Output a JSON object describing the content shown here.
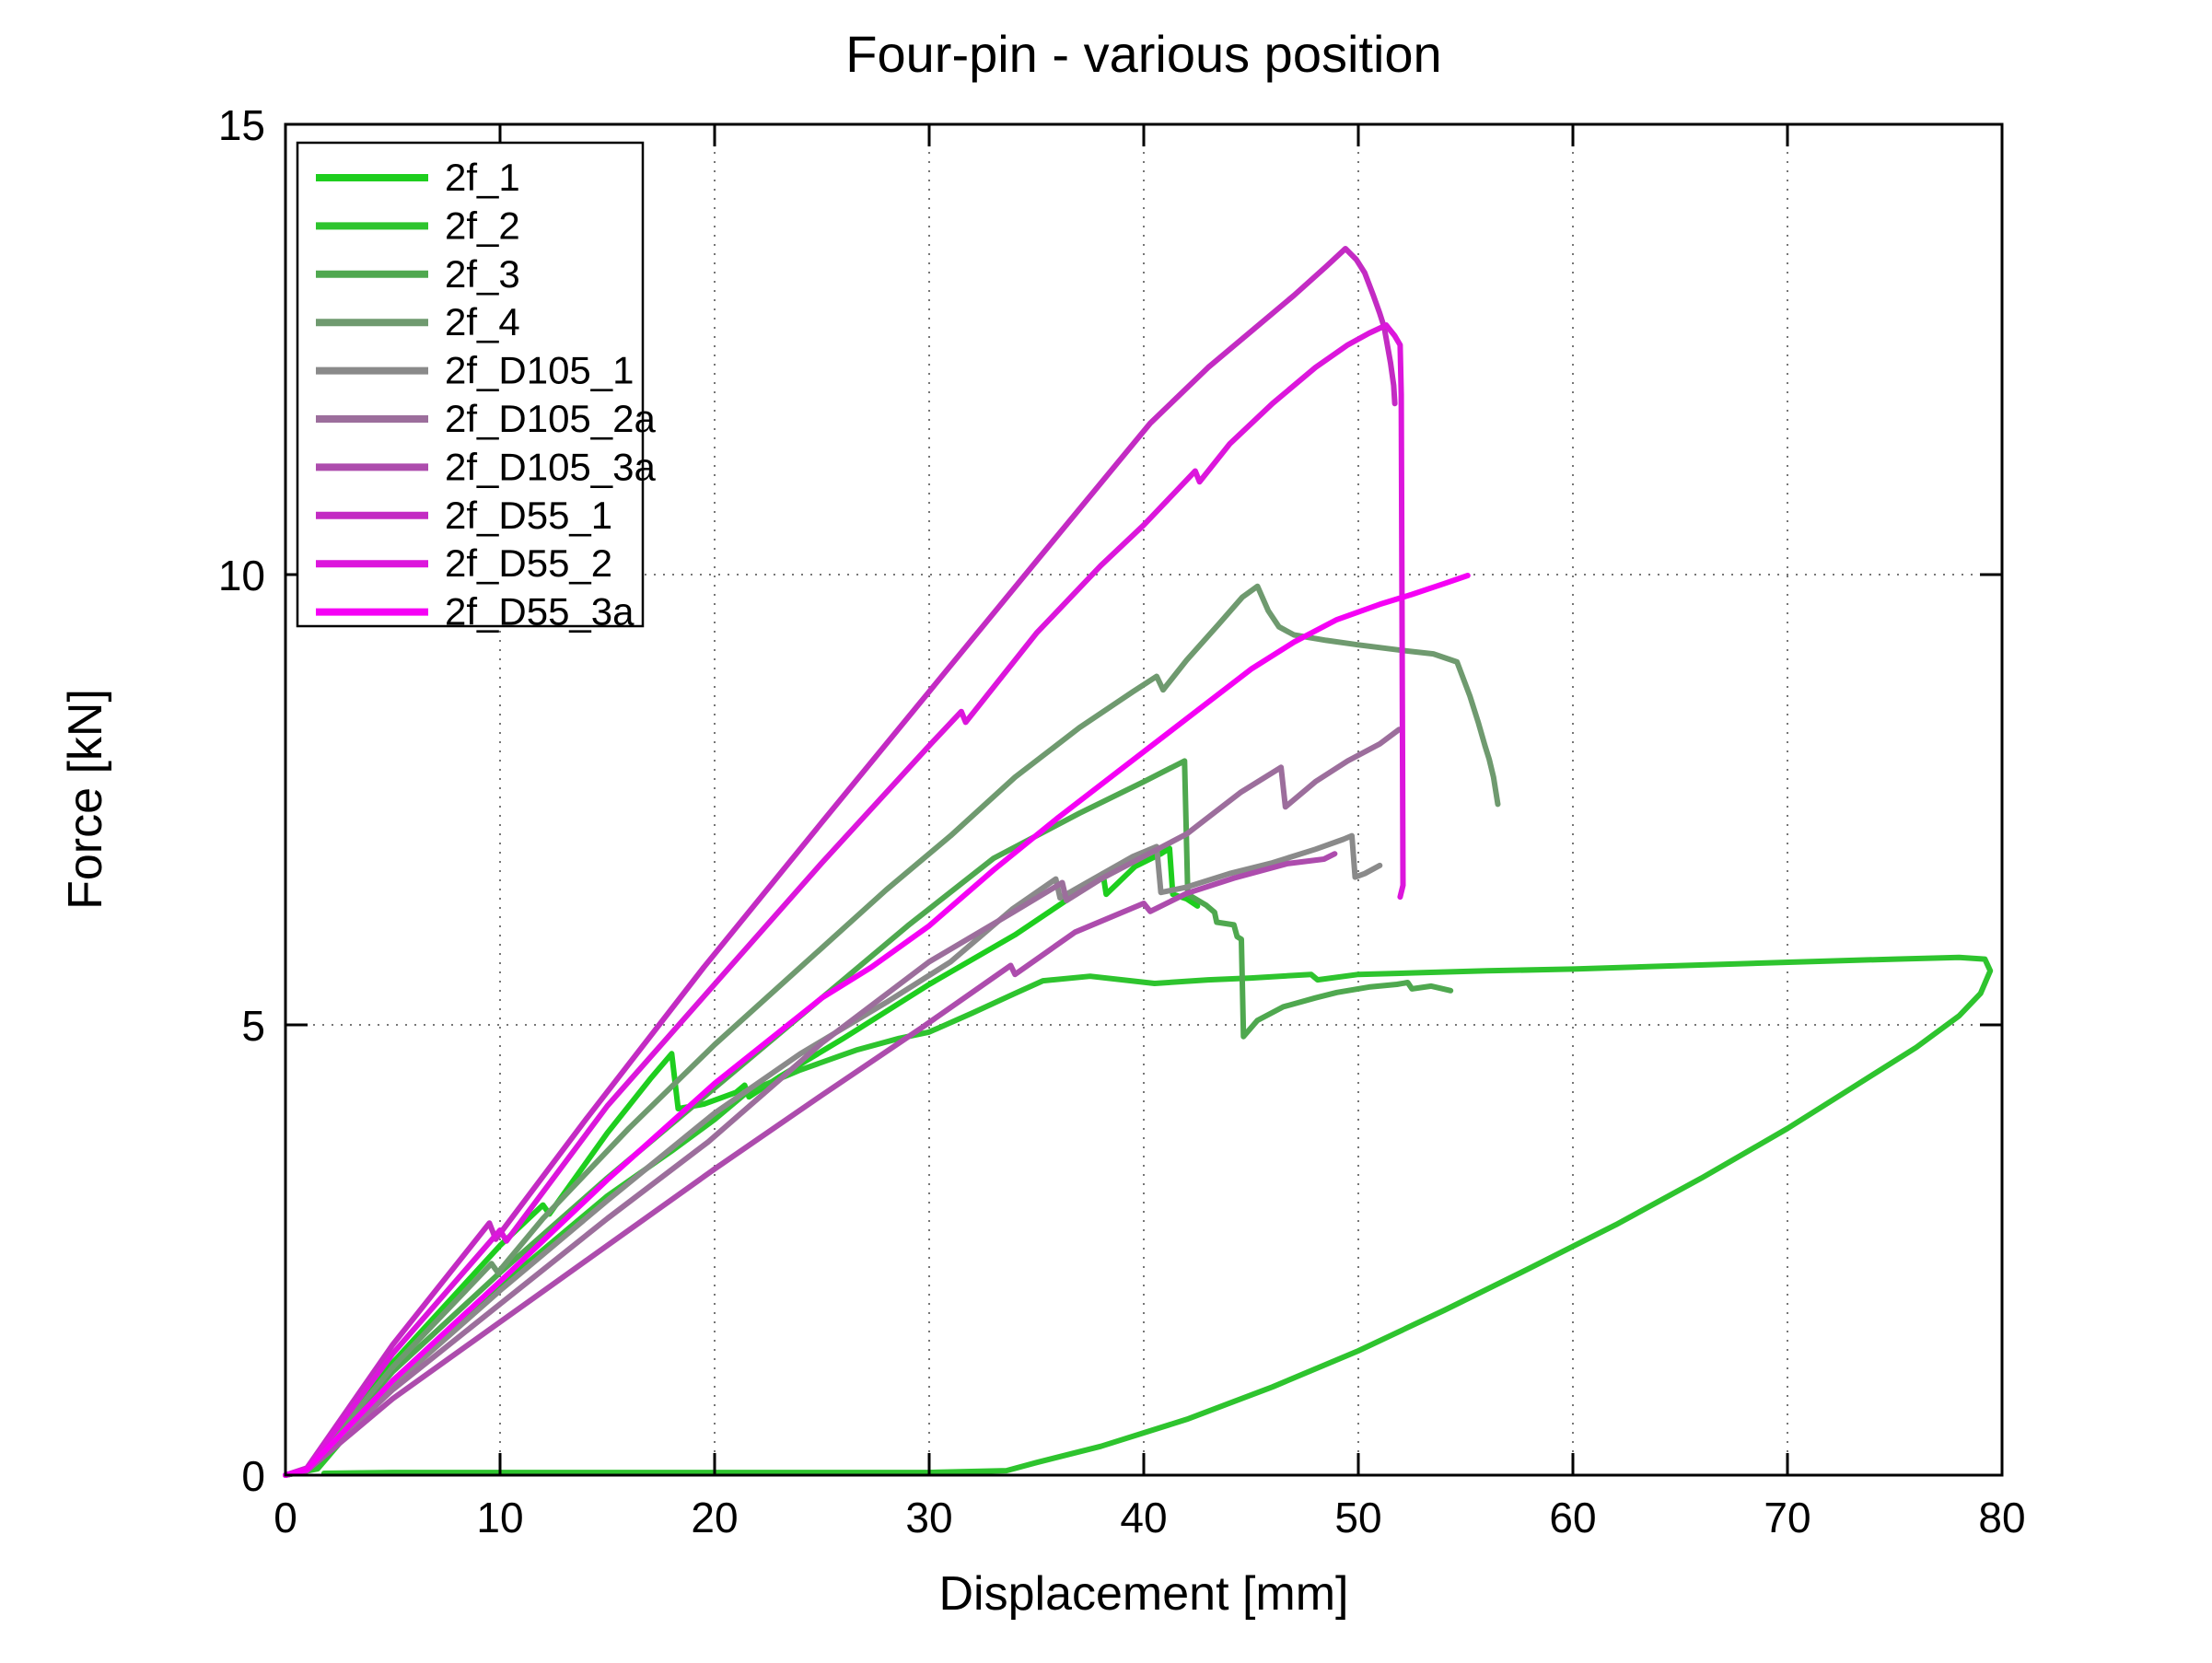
{
  "chart_data": {
    "type": "line",
    "title": "Four-pin - various position",
    "xlabel": "Displacement [mm]",
    "ylabel": "Force [kN]",
    "xlim": [
      0,
      80
    ],
    "ylim": [
      0,
      15
    ],
    "xticks": [
      0,
      10,
      20,
      30,
      40,
      50,
      60,
      70,
      80
    ],
    "yticks": [
      0,
      5,
      10,
      15
    ],
    "grid": "dotted",
    "legend_position": "upper-left",
    "series": [
      {
        "name": "2f_1",
        "color": "#1ECE1E",
        "points": [
          [
            0,
            0
          ],
          [
            1,
            0.05
          ],
          [
            5,
            1.25
          ],
          [
            10,
            2.55
          ],
          [
            12,
            3.0
          ],
          [
            12.3,
            2.9
          ],
          [
            15,
            3.8
          ],
          [
            17,
            4.4
          ],
          [
            18.0,
            4.68
          ],
          [
            18.3,
            4.07
          ],
          [
            19.5,
            4.12
          ],
          [
            21.0,
            4.25
          ],
          [
            21.4,
            4.33
          ],
          [
            21.6,
            4.2
          ],
          [
            23,
            4.42
          ],
          [
            26,
            4.85
          ],
          [
            30,
            5.45
          ],
          [
            34,
            6.0
          ],
          [
            36.5,
            6.4
          ],
          [
            38.1,
            6.68
          ],
          [
            38.25,
            6.45
          ],
          [
            39.6,
            6.76
          ],
          [
            40.8,
            6.9
          ],
          [
            41.2,
            6.96
          ],
          [
            41.35,
            6.45
          ],
          [
            42.0,
            6.4
          ],
          [
            42.5,
            6.32
          ]
        ]
      },
      {
        "name": "2f_2",
        "color": "#2EC42E",
        "points": [
          [
            0,
            0
          ],
          [
            1.5,
            0.07
          ],
          [
            5,
            1.05
          ],
          [
            10,
            2.1
          ],
          [
            15,
            3.1
          ],
          [
            18,
            3.6
          ],
          [
            20,
            3.95
          ],
          [
            21.5,
            4.25
          ],
          [
            24,
            4.5
          ],
          [
            26.6,
            4.72
          ],
          [
            28.6,
            4.85
          ],
          [
            30,
            4.92
          ],
          [
            32,
            5.13
          ],
          [
            34,
            5.35
          ],
          [
            35.3,
            5.49
          ],
          [
            37.5,
            5.54
          ],
          [
            40.5,
            5.46
          ],
          [
            43,
            5.5
          ],
          [
            45,
            5.52
          ],
          [
            47.8,
            5.56
          ],
          [
            48.1,
            5.5
          ],
          [
            50,
            5.56
          ],
          [
            53,
            5.58
          ],
          [
            56,
            5.6
          ],
          [
            60,
            5.62
          ],
          [
            64,
            5.65
          ],
          [
            68,
            5.68
          ],
          [
            72,
            5.71
          ],
          [
            75,
            5.73
          ],
          [
            78,
            5.75
          ],
          [
            79.2,
            5.73
          ],
          [
            79.45,
            5.6
          ],
          [
            79,
            5.35
          ],
          [
            78,
            5.1
          ],
          [
            76,
            4.75
          ],
          [
            73,
            4.3
          ],
          [
            70,
            3.85
          ],
          [
            66,
            3.3
          ],
          [
            62,
            2.78
          ],
          [
            58,
            2.3
          ],
          [
            54,
            1.83
          ],
          [
            50,
            1.38
          ],
          [
            46,
            0.98
          ],
          [
            42,
            0.62
          ],
          [
            38,
            0.32
          ],
          [
            35,
            0.14
          ],
          [
            33.6,
            0.05
          ],
          [
            30,
            0.03
          ],
          [
            25,
            0.03
          ],
          [
            20,
            0.03
          ],
          [
            15,
            0.03
          ],
          [
            10,
            0.03
          ],
          [
            5,
            0.03
          ],
          [
            1.8,
            0.02
          ]
        ]
      },
      {
        "name": "2f_3",
        "color": "#4FA84F",
        "points": [
          [
            0,
            0
          ],
          [
            1,
            0.05
          ],
          [
            5,
            1.15
          ],
          [
            10,
            2.25
          ],
          [
            15,
            3.3
          ],
          [
            20,
            4.3
          ],
          [
            25,
            5.3
          ],
          [
            29,
            6.1
          ],
          [
            33,
            6.85
          ],
          [
            37,
            7.35
          ],
          [
            40,
            7.7
          ],
          [
            41.9,
            7.93
          ],
          [
            42.05,
            6.45
          ],
          [
            42.9,
            6.33
          ],
          [
            43.3,
            6.25
          ],
          [
            43.4,
            6.14
          ],
          [
            44.2,
            6.11
          ],
          [
            44.35,
            5.98
          ],
          [
            44.55,
            5.95
          ],
          [
            44.65,
            4.87
          ],
          [
            45.3,
            5.05
          ],
          [
            46.5,
            5.2
          ],
          [
            48,
            5.3
          ],
          [
            49,
            5.36
          ],
          [
            50.5,
            5.42
          ],
          [
            51.8,
            5.45
          ],
          [
            52.3,
            5.47
          ],
          [
            52.5,
            5.4
          ],
          [
            53.4,
            5.43
          ],
          [
            54.3,
            5.38
          ]
        ]
      },
      {
        "name": "2f_4",
        "color": "#6F9A6F",
        "points": [
          [
            0,
            0
          ],
          [
            1,
            0.05
          ],
          [
            5,
            1.2
          ],
          [
            9.6,
            2.35
          ],
          [
            9.9,
            2.25
          ],
          [
            12,
            2.85
          ],
          [
            16,
            3.85
          ],
          [
            20,
            4.78
          ],
          [
            24,
            5.64
          ],
          [
            28,
            6.5
          ],
          [
            31,
            7.1
          ],
          [
            34,
            7.75
          ],
          [
            37,
            8.3
          ],
          [
            39.5,
            8.7
          ],
          [
            40.6,
            8.87
          ],
          [
            40.9,
            8.72
          ],
          [
            42,
            9.05
          ],
          [
            43.5,
            9.45
          ],
          [
            44.6,
            9.75
          ],
          [
            45.3,
            9.87
          ],
          [
            45.8,
            9.6
          ],
          [
            46.3,
            9.42
          ],
          [
            47,
            9.33
          ],
          [
            48.5,
            9.27
          ],
          [
            50,
            9.22
          ],
          [
            52,
            9.16
          ],
          [
            53.5,
            9.12
          ],
          [
            54.6,
            9.03
          ],
          [
            55.2,
            8.65
          ],
          [
            55.6,
            8.35
          ],
          [
            55.9,
            8.1
          ],
          [
            56.1,
            7.95
          ],
          [
            56.3,
            7.75
          ],
          [
            56.5,
            7.45
          ]
        ]
      },
      {
        "name": "2f_D105_1",
        "color": "#8A8A8A",
        "points": [
          [
            0,
            0
          ],
          [
            1,
            0.05
          ],
          [
            5,
            1.0
          ],
          [
            10,
            2.05
          ],
          [
            15,
            3.05
          ],
          [
            20,
            4.02
          ],
          [
            24,
            4.68
          ],
          [
            28,
            5.25
          ],
          [
            31,
            5.7
          ],
          [
            33.9,
            6.29
          ],
          [
            35.9,
            6.62
          ],
          [
            36.1,
            6.41
          ],
          [
            37.5,
            6.6
          ],
          [
            39.5,
            6.87
          ],
          [
            40.6,
            6.98
          ],
          [
            40.8,
            6.47
          ],
          [
            42,
            6.53
          ],
          [
            44,
            6.68
          ],
          [
            46,
            6.8
          ],
          [
            48,
            6.95
          ],
          [
            49.3,
            7.06
          ],
          [
            49.7,
            7.1
          ],
          [
            49.85,
            6.64
          ],
          [
            50.3,
            6.68
          ],
          [
            51.0,
            6.77
          ]
        ]
      },
      {
        "name": "2f_D105_2a",
        "color": "#9C6E9C",
        "points": [
          [
            0,
            0
          ],
          [
            1,
            0.05
          ],
          [
            5,
            0.95
          ],
          [
            10,
            1.9
          ],
          [
            15,
            2.85
          ],
          [
            19.7,
            3.7
          ],
          [
            25,
            4.8
          ],
          [
            30,
            5.7
          ],
          [
            33.9,
            6.25
          ],
          [
            36.2,
            6.58
          ],
          [
            36.4,
            6.38
          ],
          [
            38,
            6.62
          ],
          [
            39.6,
            6.82
          ],
          [
            42,
            7.12
          ],
          [
            44.5,
            7.58
          ],
          [
            46.4,
            7.86
          ],
          [
            46.6,
            7.42
          ],
          [
            48,
            7.7
          ],
          [
            49.5,
            7.93
          ],
          [
            51,
            8.12
          ],
          [
            51.9,
            8.28
          ]
        ]
      },
      {
        "name": "2f_D105_3a",
        "color": "#AD4CAD",
        "points": [
          [
            0,
            0
          ],
          [
            1,
            0.05
          ],
          [
            5,
            0.85
          ],
          [
            10,
            1.7
          ],
          [
            15,
            2.55
          ],
          [
            20,
            3.4
          ],
          [
            25,
            4.22
          ],
          [
            29.6,
            4.96
          ],
          [
            33.8,
            5.66
          ],
          [
            34.0,
            5.56
          ],
          [
            36.8,
            6.03
          ],
          [
            40.0,
            6.35
          ],
          [
            40.3,
            6.26
          ],
          [
            42,
            6.46
          ],
          [
            44.2,
            6.63
          ],
          [
            46.7,
            6.79
          ],
          [
            48.4,
            6.84
          ],
          [
            48.9,
            6.9
          ]
        ]
      },
      {
        "name": "2f_D55_1",
        "color": "#C32BC3",
        "points": [
          [
            0,
            0
          ],
          [
            1,
            0.08
          ],
          [
            5,
            1.45
          ],
          [
            9.5,
            2.8
          ],
          [
            9.8,
            2.62
          ],
          [
            14,
            3.95
          ],
          [
            19.5,
            5.64
          ],
          [
            25,
            7.25
          ],
          [
            30,
            8.7
          ],
          [
            35,
            10.15
          ],
          [
            40.3,
            11.68
          ],
          [
            43,
            12.3
          ],
          [
            45,
            12.7
          ],
          [
            47,
            13.1
          ],
          [
            48.5,
            13.42
          ],
          [
            49.4,
            13.62
          ],
          [
            49.9,
            13.5
          ],
          [
            50.3,
            13.35
          ],
          [
            50.7,
            13.1
          ],
          [
            51.0,
            12.9
          ],
          [
            51.2,
            12.75
          ],
          [
            51.35,
            12.55
          ],
          [
            51.5,
            12.35
          ],
          [
            51.65,
            12.1
          ],
          [
            51.7,
            11.9
          ]
        ]
      },
      {
        "name": "2f_D55_2",
        "color": "#DC16DC",
        "points": [
          [
            0,
            0
          ],
          [
            1,
            0.07
          ],
          [
            5,
            1.35
          ],
          [
            10,
            2.72
          ],
          [
            10.3,
            2.6
          ],
          [
            15,
            4.1
          ],
          [
            20.7,
            5.64
          ],
          [
            25,
            6.8
          ],
          [
            30,
            8.1
          ],
          [
            31.5,
            8.48
          ],
          [
            31.7,
            8.36
          ],
          [
            35,
            9.35
          ],
          [
            38,
            10.1
          ],
          [
            40,
            10.55
          ],
          [
            42.4,
            11.15
          ],
          [
            42.6,
            11.03
          ],
          [
            44,
            11.45
          ],
          [
            46,
            11.9
          ],
          [
            48,
            12.3
          ],
          [
            49.5,
            12.55
          ],
          [
            50.5,
            12.68
          ],
          [
            51.3,
            12.77
          ],
          [
            51.7,
            12.65
          ],
          [
            51.95,
            12.55
          ],
          [
            52.0,
            12.0
          ],
          [
            52.03,
            10.0
          ],
          [
            52.06,
            8.0
          ],
          [
            52.08,
            6.55
          ],
          [
            51.95,
            6.42
          ]
        ]
      },
      {
        "name": "2f_D55_3a",
        "color": "#F500F5",
        "points": [
          [
            0,
            0
          ],
          [
            1,
            0.06
          ],
          [
            5,
            1.05
          ],
          [
            10,
            2.15
          ],
          [
            15,
            3.28
          ],
          [
            20,
            4.35
          ],
          [
            25,
            5.3
          ],
          [
            27.3,
            5.64
          ],
          [
            30,
            6.1
          ],
          [
            33,
            6.72
          ],
          [
            36,
            7.3
          ],
          [
            39,
            7.85
          ],
          [
            42,
            8.4
          ],
          [
            45,
            8.95
          ],
          [
            47,
            9.25
          ],
          [
            49,
            9.5
          ],
          [
            51,
            9.67
          ],
          [
            52.5,
            9.78
          ],
          [
            54,
            9.9
          ],
          [
            55.1,
            9.99
          ]
        ]
      }
    ]
  }
}
